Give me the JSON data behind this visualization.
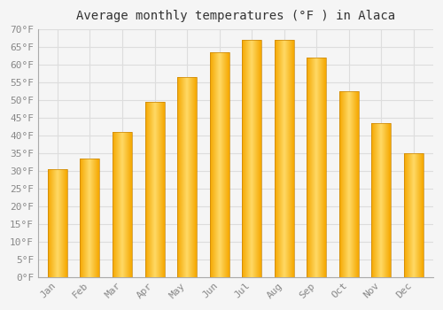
{
  "title": "Average monthly temperatures (°F ) in Alaca",
  "months": [
    "Jan",
    "Feb",
    "Mar",
    "Apr",
    "May",
    "Jun",
    "Jul",
    "Aug",
    "Sep",
    "Oct",
    "Nov",
    "Dec"
  ],
  "values": [
    30.5,
    33.5,
    41.0,
    49.5,
    56.5,
    63.5,
    67.0,
    67.0,
    62.0,
    52.5,
    43.5,
    35.0
  ],
  "bar_color_center": "#FFD966",
  "bar_color_edge": "#F5A800",
  "bar_edge_color": "#C8850A",
  "ylim": [
    0,
    70
  ],
  "yticks": [
    0,
    5,
    10,
    15,
    20,
    25,
    30,
    35,
    40,
    45,
    50,
    55,
    60,
    65,
    70
  ],
  "background_color": "#F5F5F5",
  "plot_bg_color": "#F5F5F5",
  "grid_color": "#DDDDDD",
  "title_fontsize": 10,
  "tick_fontsize": 8,
  "tick_color": "#888888"
}
